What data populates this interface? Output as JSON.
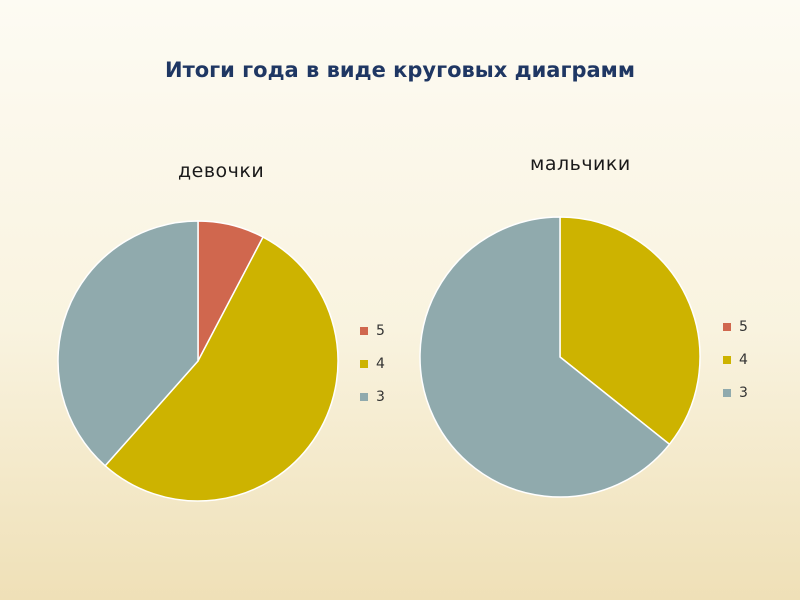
{
  "slide": {
    "title": "Итоги года в виде круговых диаграмм"
  },
  "chart_data": [
    {
      "type": "pie",
      "title": "девочки",
      "categories": [
        "5",
        "4",
        "3"
      ],
      "values": [
        2,
        14,
        10
      ],
      "colors": [
        "#d0674e",
        "#cdb300",
        "#90aaad"
      ],
      "legend": "right"
    },
    {
      "type": "pie",
      "title": "мальчики",
      "categories": [
        "5",
        "4",
        "3"
      ],
      "values": [
        0,
        5,
        9
      ],
      "colors": [
        "#d0674e",
        "#cdb300",
        "#90aaad"
      ],
      "legend": "right"
    }
  ]
}
